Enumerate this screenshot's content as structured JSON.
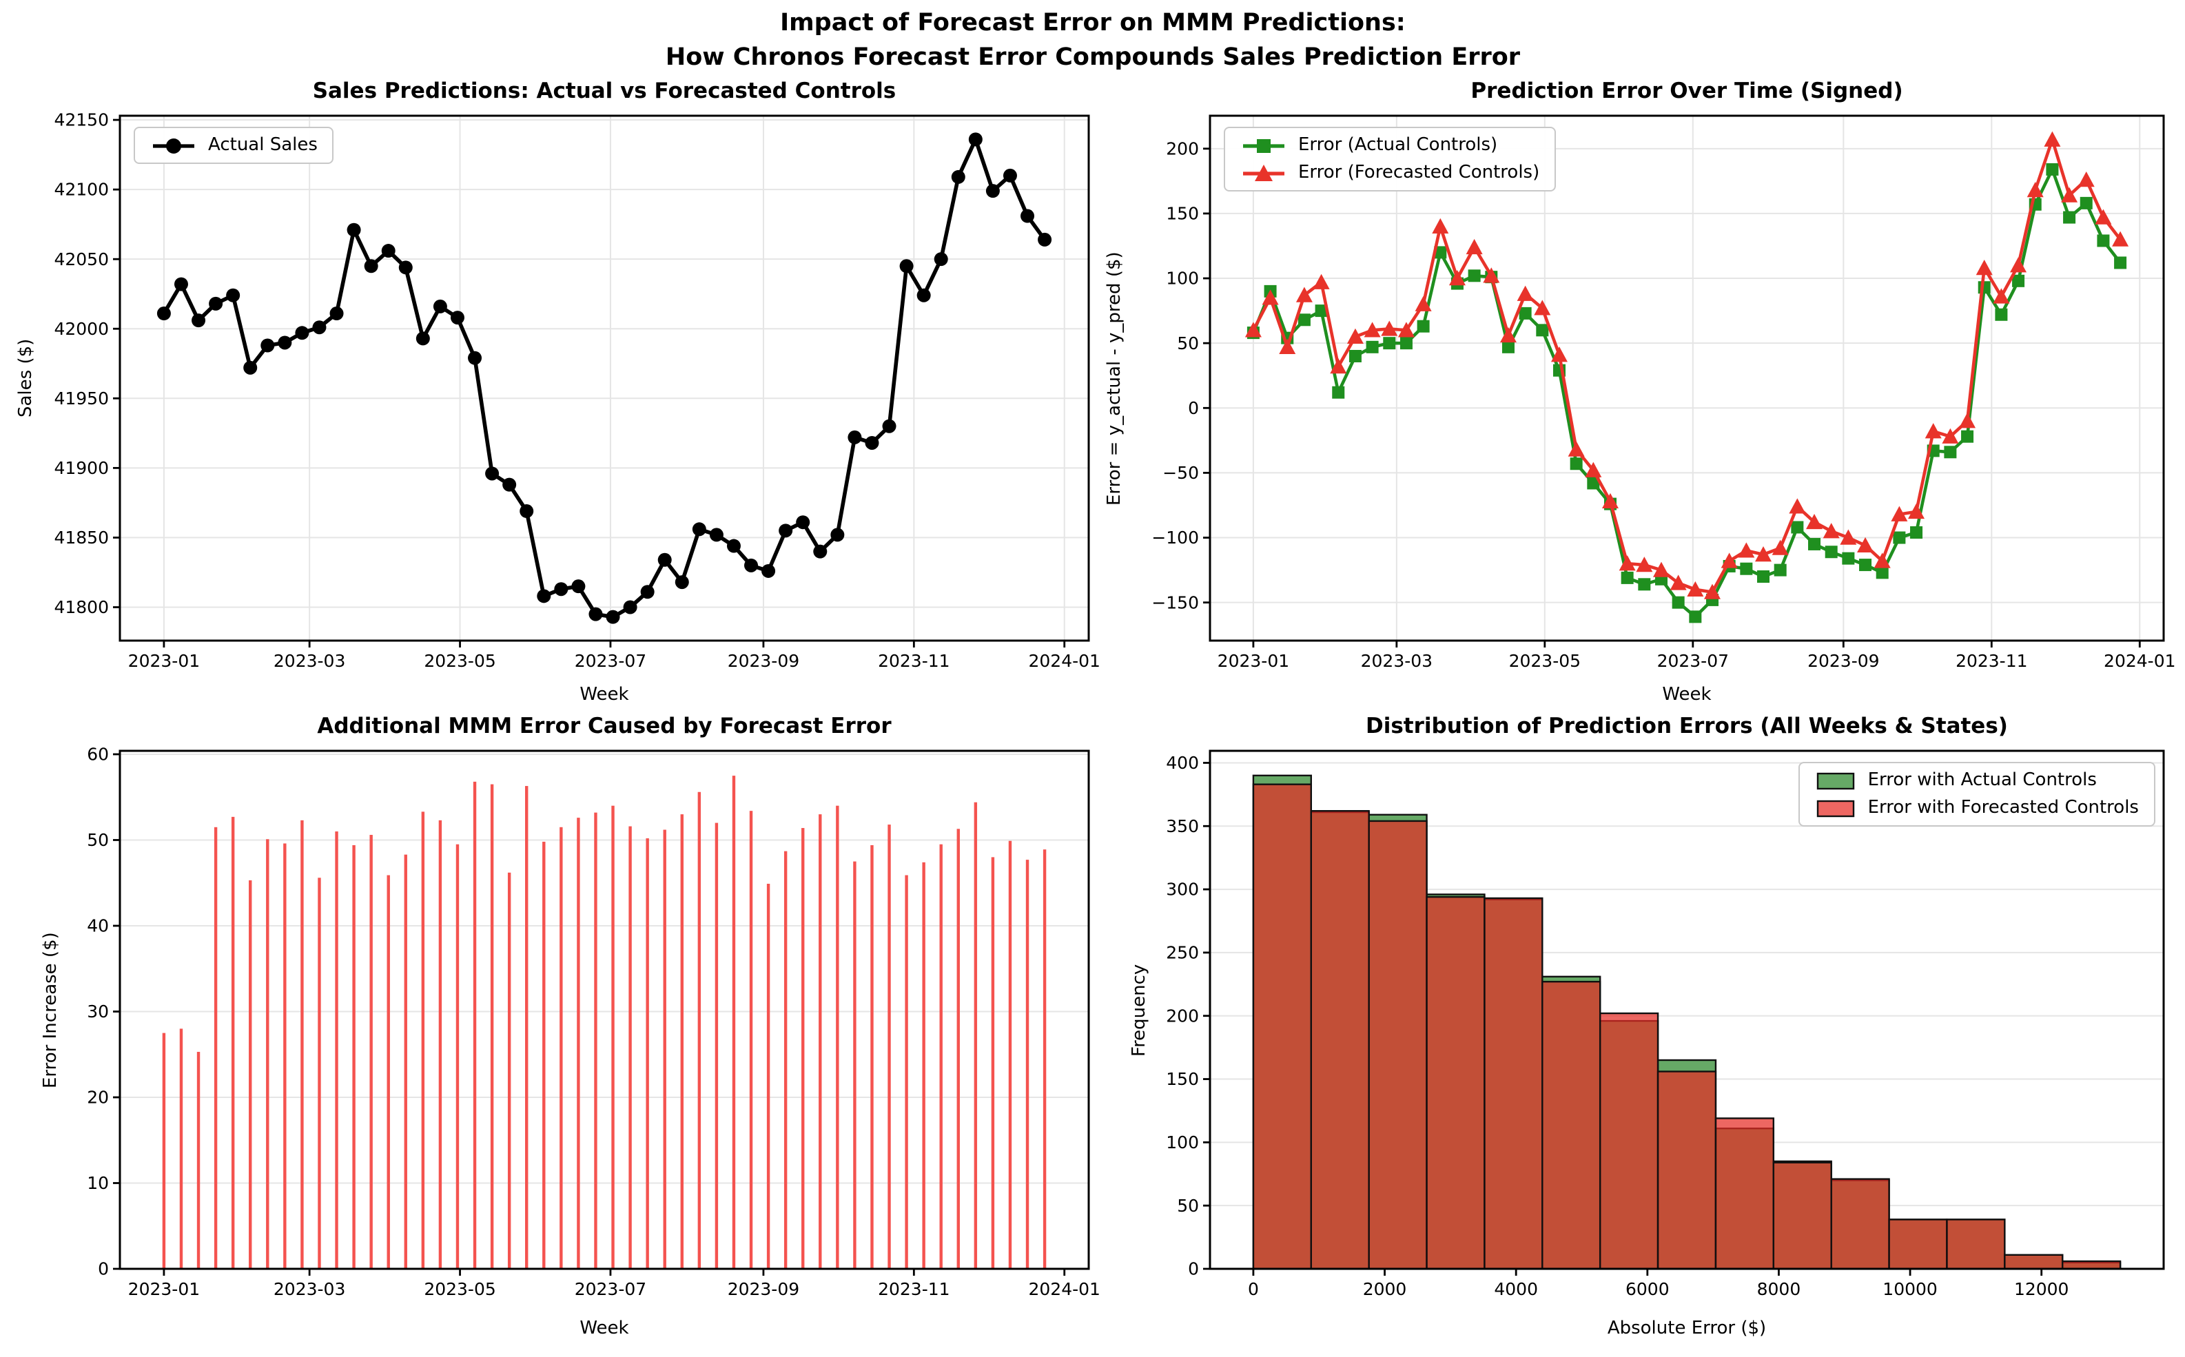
{
  "suptitle": {
    "line1": "Impact of Forecast Error on MMM Predictions:",
    "line2": "How Chronos Forecast Error Compounds Sales Prediction Error"
  },
  "colors": {
    "actual_sales_line": "#000000",
    "error_actual_line": "#1f8f1f",
    "error_forecast_line": "#e8332a",
    "error_increase_bar": "#f4534f",
    "hist_actual_fill": "#66a966",
    "hist_forecast_fill": "rgba(230,45,38,0.72)",
    "hist_edge": "#101010",
    "grid": "#e5e5e5"
  },
  "chart_data": [
    {
      "id": "sales-predictions",
      "type": "line",
      "title": "Sales Predictions: Actual vs Forecasted Controls",
      "xlabel": "Week",
      "ylabel": "Sales ($)",
      "xlim": [
        -17.85,
        374.85
      ],
      "ylim": [
        41776,
        42153
      ],
      "yticks": [
        41800,
        41850,
        41900,
        41950,
        42000,
        42050,
        42100,
        42150
      ],
      "xticks": {
        "values": [
          0,
          59,
          120,
          181,
          243,
          304,
          365
        ],
        "labels": [
          "2023-01",
          "2023-03",
          "2023-05",
          "2023-07",
          "2023-09",
          "2023-11",
          "2024-01"
        ]
      },
      "grid_x": true,
      "legend_position": "top-left",
      "series": [
        {
          "name": "Actual Sales",
          "color": "#000000",
          "marker": "circle",
          "markersize": 5,
          "linewidth": 2.8,
          "x_step_days": 7,
          "values": [
            42011,
            42032,
            42006,
            42018,
            42024,
            41972,
            41988,
            41990,
            41997,
            42001,
            42011,
            42071,
            42045,
            42056,
            42044,
            41993,
            42016,
            42008,
            41979,
            41896,
            41888,
            41869,
            41808,
            41813,
            41815,
            41795,
            41793,
            41800,
            41811,
            41834,
            41818,
            41856,
            41852,
            41844,
            41830,
            41826,
            41855,
            41861,
            41840,
            41852,
            41922,
            41918,
            41930,
            42045,
            42024,
            42050,
            42109,
            42136,
            42099,
            42110,
            42081,
            42064
          ]
        }
      ]
    },
    {
      "id": "prediction-error-over-time",
      "type": "line",
      "title": "Prediction Error Over Time (Signed)",
      "xlabel": "Week",
      "ylabel": "Error = y_actual - y_pred ($)",
      "xlim": [
        -17.85,
        374.85
      ],
      "ylim": [
        -179.4,
        225.4
      ],
      "yticks": [
        -150,
        -100,
        -50,
        0,
        50,
        100,
        150,
        200
      ],
      "xticks": {
        "values": [
          0,
          59,
          120,
          181,
          243,
          304,
          365
        ],
        "labels": [
          "2023-01",
          "2023-03",
          "2023-05",
          "2023-07",
          "2023-09",
          "2023-11",
          "2024-01"
        ]
      },
      "grid_x": true,
      "legend_position": "top-left",
      "series": [
        {
          "name": "Error (Actual Controls)",
          "color": "#1f8f1f",
          "marker": "square",
          "markersize": 4.5,
          "linewidth": 2.3,
          "x_step_days": 7,
          "values": [
            58,
            90,
            54,
            68,
            75,
            12,
            40,
            47,
            50,
            50,
            63,
            120,
            96,
            102,
            101,
            47,
            73,
            60,
            29,
            -43,
            -58,
            -74,
            -131,
            -136,
            -132,
            -150,
            -161,
            -148,
            -122,
            -124,
            -130,
            -125,
            -92,
            -105,
            -111,
            -116,
            -121,
            -127,
            -100,
            -96,
            -33,
            -34,
            -22,
            93,
            72,
            98,
            157,
            184,
            147,
            158,
            129,
            112
          ]
        },
        {
          "name": "Error (Forecasted Controls)",
          "color": "#e8332a",
          "marker": "triangle",
          "markersize": 6,
          "linewidth": 2.3,
          "x_step_days": 7,
          "values": [
            60,
            85,
            47,
            87,
            97,
            32,
            55,
            60,
            61,
            60,
            80,
            140,
            100,
            124,
            102,
            56,
            88,
            77,
            41,
            -32,
            -48,
            -72,
            -120,
            -121,
            -125,
            -135,
            -140,
            -142,
            -118,
            -110,
            -113,
            -108,
            -76,
            -88,
            -95,
            -100,
            -106,
            -118,
            -82,
            -80,
            -18,
            -22,
            -10,
            108,
            86,
            110,
            168,
            207,
            164,
            176,
            147,
            130
          ]
        }
      ]
    },
    {
      "id": "additional-mmm-error",
      "type": "stem",
      "title": "Additional MMM Error Caused by Forecast Error",
      "xlabel": "Week",
      "ylabel": "Error Increase ($)",
      "xlim": [
        -17.85,
        374.85
      ],
      "ylim": [
        0,
        60.4
      ],
      "yticks": [
        0,
        10,
        20,
        30,
        40,
        50,
        60
      ],
      "xticks": {
        "values": [
          0,
          59,
          120,
          181,
          243,
          304,
          365
        ],
        "labels": [
          "2023-01",
          "2023-03",
          "2023-05",
          "2023-07",
          "2023-09",
          "2023-11",
          "2024-01"
        ]
      },
      "grid_x": false,
      "bar_color": "#f4534f",
      "bar_width": 2.2,
      "x_step_days": 7,
      "values": [
        27.5,
        28.0,
        25.3,
        51.5,
        52.7,
        45.3,
        50.1,
        49.6,
        52.3,
        45.6,
        51.0,
        49.4,
        50.6,
        45.9,
        48.3,
        53.3,
        52.3,
        49.5,
        56.8,
        56.5,
        46.2,
        56.3,
        49.8,
        51.5,
        52.6,
        53.2,
        54.0,
        51.6,
        50.2,
        51.2,
        53.0,
        55.6,
        52.0,
        57.5,
        53.4,
        44.9,
        48.7,
        51.4,
        53.0,
        54.0,
        47.5,
        49.4,
        51.8,
        45.9,
        47.4,
        49.5,
        51.3,
        54.4,
        48.0,
        49.9,
        47.7,
        48.9
      ]
    },
    {
      "id": "error-distribution",
      "type": "hist",
      "title": "Distribution of Prediction Errors (All Weeks & States)",
      "xlabel": "Absolute Error ($)",
      "ylabel": "Frequency",
      "xlim": [
        -660,
        13860
      ],
      "ylim": [
        0,
        409.5
      ],
      "yticks": [
        0,
        50,
        100,
        150,
        200,
        250,
        300,
        350,
        400
      ],
      "xticks": {
        "values": [
          0,
          2000,
          4000,
          6000,
          8000,
          10000,
          12000
        ],
        "labels": [
          "0",
          "2000",
          "4000",
          "6000",
          "8000",
          "10000",
          "12000"
        ]
      },
      "grid_x": false,
      "bin_start": 0,
      "bin_width": 880,
      "edge_color": "#101010",
      "legend_position": "top-right",
      "series": [
        {
          "name": "Error with Actual Controls",
          "fill": "#66a966",
          "values": [
            390,
            361,
            359,
            296,
            292,
            231,
            196,
            165,
            111,
            85,
            70,
            39,
            39,
            11,
            5
          ]
        },
        {
          "name": "Error with Forecasted Controls",
          "fill": "rgba(230,45,38,0.72)",
          "values": [
            383,
            362,
            354,
            294,
            293,
            227,
            202,
            156,
            119,
            84,
            71,
            39,
            39,
            11,
            6
          ]
        }
      ]
    }
  ]
}
